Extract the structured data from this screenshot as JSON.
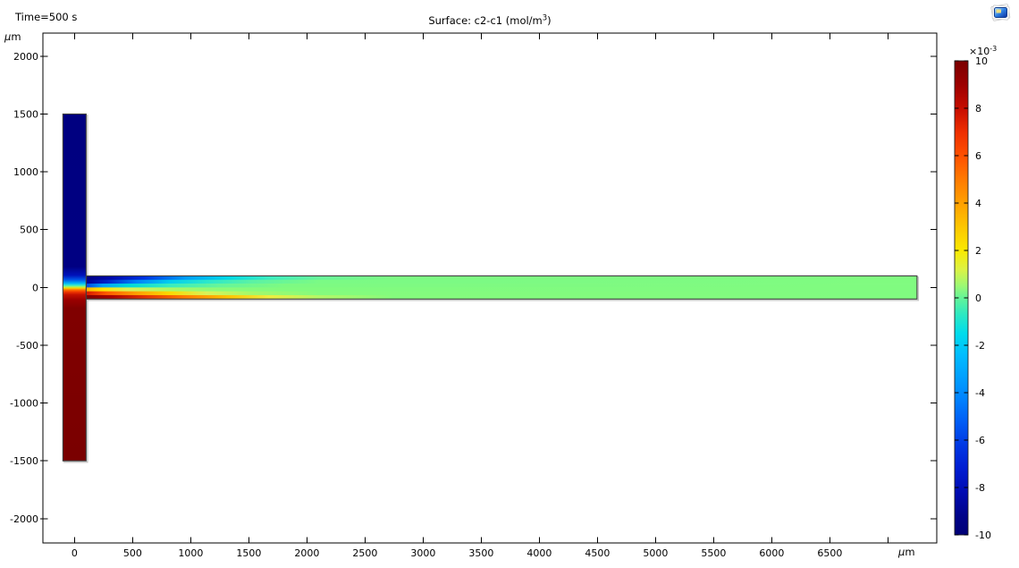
{
  "header": {
    "time_label": "Time=500 s",
    "title_prefix": "Surface: c2-c1 (mol/m",
    "title_sup": "3",
    "title_suffix": ")"
  },
  "icons": {
    "corner_icon": "plot-group-icon"
  },
  "chart_data": {
    "type": "heatmap",
    "title": "Surface: c2-c1 (mol/m³)",
    "time_annotation": "Time=500 s",
    "x_unit": "μm",
    "y_unit": "μm",
    "xlim": [
      -272,
      7420
    ],
    "ylim": [
      -2210,
      2200
    ],
    "x_tick_values": [
      0,
      500,
      1000,
      1500,
      2000,
      2500,
      3000,
      3500,
      4000,
      4500,
      5000,
      5500,
      6000,
      6500,
      7000
    ],
    "x_tick_labels": [
      "0",
      "500",
      "1000",
      "1500",
      "2000",
      "2500",
      "3000",
      "3500",
      "4000",
      "4500",
      "5000",
      "5500",
      "6000",
      "6500",
      ""
    ],
    "y_tick_values": [
      -2000,
      -1500,
      -1000,
      -500,
      0,
      500,
      1000,
      1500,
      2000
    ],
    "y_tick_labels": [
      "-2000",
      "-1500",
      "-1000",
      "-500",
      "0",
      "500",
      "1000",
      "1500",
      "2000"
    ],
    "grid": false,
    "legend_position": "right-colorbar",
    "colorbar": {
      "exponent_base": "×10",
      "exponent_sup": "-3",
      "tick_values": [
        10,
        8,
        6,
        4,
        2,
        0,
        -2,
        -4,
        -6,
        -8,
        -10
      ],
      "tick_labels": [
        "10",
        "8",
        "6",
        "4",
        "2",
        "0",
        "-2",
        "-4",
        "-6",
        "-8",
        "-10"
      ],
      "value_min": -0.01,
      "value_max": 0.01,
      "colormap_name": "rainbow",
      "gradient_stops": [
        [
          0,
          "#7a0000"
        ],
        [
          0.05,
          "#9c0000"
        ],
        [
          0.1,
          "#c60d00"
        ],
        [
          0.15,
          "#ee2e00"
        ],
        [
          0.2,
          "#ff5000"
        ],
        [
          0.25,
          "#ff7a00"
        ],
        [
          0.3,
          "#ffa000"
        ],
        [
          0.35,
          "#fdc600"
        ],
        [
          0.4,
          "#fae900"
        ],
        [
          0.44,
          "#dcf244"
        ],
        [
          0.475,
          "#9bf975"
        ],
        [
          0.5,
          "#63f498"
        ],
        [
          0.535,
          "#2ce9c2"
        ],
        [
          0.575,
          "#00dcec"
        ],
        [
          0.62,
          "#00bdff"
        ],
        [
          0.66,
          "#00a4ff"
        ],
        [
          0.71,
          "#0085ff"
        ],
        [
          0.76,
          "#005ef6"
        ],
        [
          0.81,
          "#0038e4"
        ],
        [
          0.86,
          "#001dd2"
        ],
        [
          0.91,
          "#000bb2"
        ],
        [
          0.96,
          "#000389"
        ],
        [
          1,
          "#000076"
        ]
      ]
    },
    "geometry": {
      "vertical_channel_um": {
        "x_range": [
          -100,
          100
        ],
        "y_range": [
          -1500,
          1500
        ]
      },
      "horizontal_channel_um": {
        "x_range": [
          100,
          7250
        ],
        "y_range": [
          -100,
          100
        ]
      },
      "top_inlet_value_mol_per_m3": -0.01,
      "bottom_inlet_value_mol_per_m3": 0.01,
      "outlet_mixed_value_mol_per_m3": 0,
      "outline_color": "#3f3f3f",
      "mixed_green": "#80fb80"
    },
    "field_gradients": {
      "vertical_channel_stops": [
        [
          0,
          "#000080"
        ],
        [
          0.44,
          "#000082"
        ],
        [
          0.465,
          "#0013bb"
        ],
        [
          0.478,
          "#0057e8"
        ],
        [
          0.488,
          "#00b4f8"
        ],
        [
          0.494,
          "#3cecc6"
        ],
        [
          0.498,
          "#a2f562"
        ],
        [
          0.502,
          "#fbd400"
        ],
        [
          0.507,
          "#ff7300"
        ],
        [
          0.513,
          "#ef3600"
        ],
        [
          0.521,
          "#c31000"
        ],
        [
          0.536,
          "#9a0000"
        ],
        [
          0.56,
          "#800000"
        ],
        [
          1,
          "#7a0000"
        ]
      ],
      "channel_strip_stops": [
        [
          [
            0,
            "#000080"
          ],
          [
            0.03,
            "#0009ab"
          ],
          [
            0.07,
            "#0032e0"
          ],
          [
            0.12,
            "#009dfb"
          ],
          [
            0.17,
            "#00d7e6"
          ],
          [
            0.22,
            "#3cecc0"
          ],
          [
            0.28,
            "#68f59a"
          ],
          [
            0.37,
            "#7dfa83"
          ],
          [
            1,
            "#80fb80"
          ]
        ],
        [
          [
            0,
            "#000092"
          ],
          [
            0.025,
            "#0022c8"
          ],
          [
            0.06,
            "#0080f8"
          ],
          [
            0.1,
            "#00cdee"
          ],
          [
            0.145,
            "#2ae8cc"
          ],
          [
            0.2,
            "#5cf2a4"
          ],
          [
            0.28,
            "#7bfa85"
          ],
          [
            1,
            "#80fb80"
          ]
        ],
        [
          [
            0,
            "#0048e0"
          ],
          [
            0.02,
            "#00a2f8"
          ],
          [
            0.05,
            "#00d8d8"
          ],
          [
            0.1,
            "#38ecc0"
          ],
          [
            0.16,
            "#66f59a"
          ],
          [
            0.24,
            "#7dfa82"
          ],
          [
            1,
            "#80fb80"
          ]
        ],
        [
          [
            0,
            "#ffb400"
          ],
          [
            0.02,
            "#fce400"
          ],
          [
            0.05,
            "#d8f256"
          ],
          [
            0.1,
            "#a8f868"
          ],
          [
            0.16,
            "#8bfb7a"
          ],
          [
            0.24,
            "#81fb7f"
          ],
          [
            1,
            "#80fb80"
          ]
        ],
        [
          [
            0,
            "#d81800"
          ],
          [
            0.025,
            "#ff5a00"
          ],
          [
            0.06,
            "#ff9e00"
          ],
          [
            0.1,
            "#fcd800"
          ],
          [
            0.145,
            "#d8f25a"
          ],
          [
            0.2,
            "#a2f86c"
          ],
          [
            0.28,
            "#84fb7d"
          ],
          [
            1,
            "#80fb80"
          ]
        ],
        [
          [
            0,
            "#7f0000"
          ],
          [
            0.03,
            "#a90000"
          ],
          [
            0.07,
            "#e13102"
          ],
          [
            0.12,
            "#ff7d00"
          ],
          [
            0.17,
            "#fdc300"
          ],
          [
            0.22,
            "#eeee3e"
          ],
          [
            0.28,
            "#b2f867"
          ],
          [
            0.37,
            "#84fb7d"
          ],
          [
            1,
            "#80fb80"
          ]
        ]
      ]
    }
  }
}
